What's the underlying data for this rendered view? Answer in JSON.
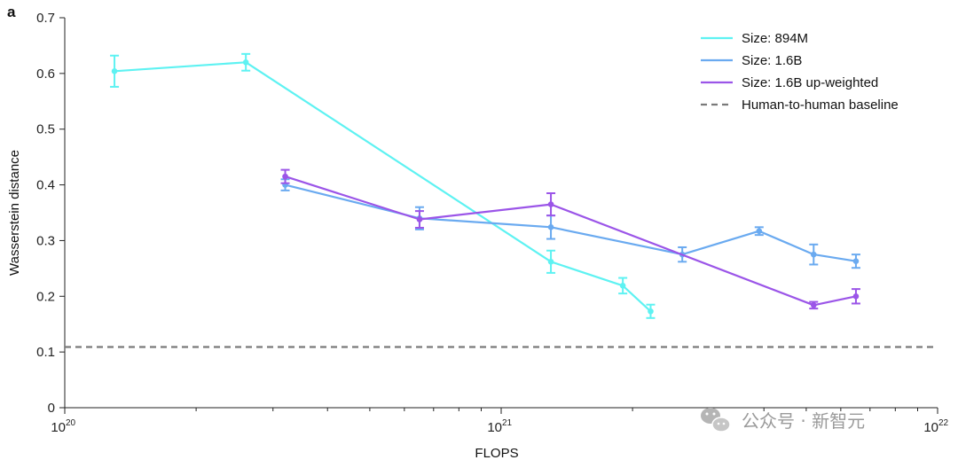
{
  "panel_label": "a",
  "watermark": {
    "text": "公众号 · 新智元",
    "icon": "wechat-icon",
    "color": "#9a9a9a"
  },
  "chart_data": {
    "type": "line",
    "xscale": "log",
    "xlabel": "FLOPS",
    "ylabel": "Wasserstein distance",
    "xlim": [
      1e+20,
      1e+22
    ],
    "ylim": [
      0,
      0.7
    ],
    "x_major_ticks": [
      {
        "value": 1e+20,
        "base": "10",
        "exp": "20"
      },
      {
        "value": 1e+21,
        "base": "10",
        "exp": "21"
      },
      {
        "value": 1e+22,
        "base": "10",
        "exp": "22"
      }
    ],
    "y_ticks": [
      {
        "value": 0,
        "label": "0"
      },
      {
        "value": 0.1,
        "label": "0.1"
      },
      {
        "value": 0.2,
        "label": "0.2"
      },
      {
        "value": 0.3,
        "label": "0.3"
      },
      {
        "value": 0.4,
        "label": "0.4"
      },
      {
        "value": 0.5,
        "label": "0.5"
      },
      {
        "value": 0.6,
        "label": "0.6"
      },
      {
        "value": 0.7,
        "label": "0.7"
      }
    ],
    "grid": false,
    "legend_position": "top-right",
    "series": [
      {
        "name": "Size: 894M",
        "color": "#5ef2f2",
        "points": [
          {
            "x": 1.3e+20,
            "y": 0.604,
            "err": 0.028
          },
          {
            "x": 2.6e+20,
            "y": 0.62,
            "err": 0.015
          },
          {
            "x": 1.3e+21,
            "y": 0.262,
            "err": 0.02
          },
          {
            "x": 1.9e+21,
            "y": 0.219,
            "err": 0.014
          },
          {
            "x": 2.2e+21,
            "y": 0.173,
            "err": 0.012
          }
        ]
      },
      {
        "name": "Size: 1.6B",
        "color": "#6aaaf0",
        "points": [
          {
            "x": 3.2e+20,
            "y": 0.4,
            "err": 0.01
          },
          {
            "x": 6.5e+20,
            "y": 0.34,
            "err": 0.02
          },
          {
            "x": 1.3e+21,
            "y": 0.324,
            "err": 0.021
          },
          {
            "x": 2.6e+21,
            "y": 0.275,
            "err": 0.013
          },
          {
            "x": 3.9e+21,
            "y": 0.317,
            "err": 0.007
          },
          {
            "x": 5.2e+21,
            "y": 0.275,
            "err": 0.018
          },
          {
            "x": 6.5e+21,
            "y": 0.263,
            "err": 0.012
          }
        ]
      },
      {
        "name": "Size: 1.6B up-weighted",
        "color": "#9b55e8",
        "points": [
          {
            "x": 3.2e+20,
            "y": 0.415,
            "err": 0.012
          },
          {
            "x": 6.5e+20,
            "y": 0.338,
            "err": 0.015
          },
          {
            "x": 1.3e+21,
            "y": 0.365,
            "err": 0.02
          },
          {
            "x": 5.2e+21,
            "y": 0.184,
            "err": 0.006
          },
          {
            "x": 6.5e+21,
            "y": 0.2,
            "err": 0.013
          }
        ]
      }
    ],
    "baseline": {
      "name": "Human-to-human baseline",
      "y": 0.109,
      "color": "#7a7a7a",
      "style": "dashed"
    }
  }
}
